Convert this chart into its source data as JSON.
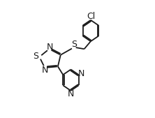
{
  "background": "#ffffff",
  "line_color": "#1a1a1a",
  "line_width": 1.3,
  "font_size": 9,
  "label_S_thia": "S",
  "label_N1": "N",
  "label_N2": "N",
  "label_S_sul": "S",
  "label_Cl": "Cl",
  "label_N_pyr1": "N",
  "label_N_pyr2": "N"
}
